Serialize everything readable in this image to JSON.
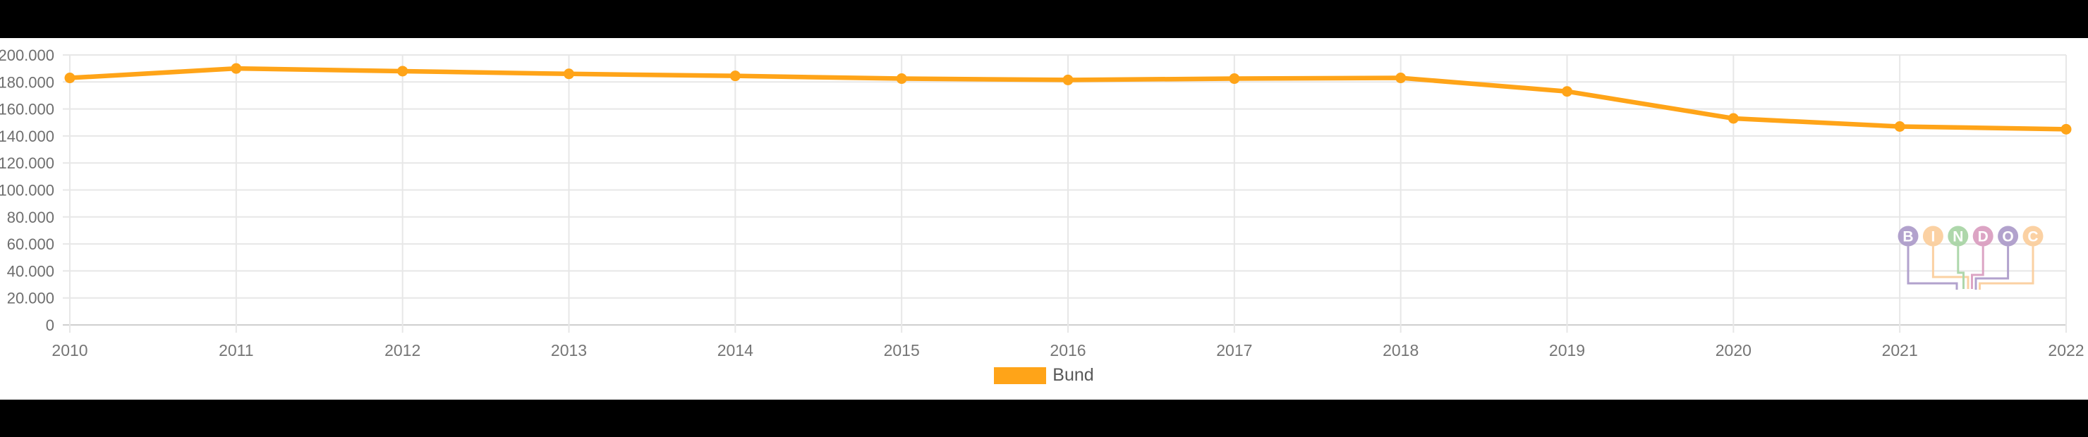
{
  "chart_data": {
    "type": "line",
    "title": "",
    "xlabel": "",
    "ylabel": "",
    "categories": [
      "2010",
      "2011",
      "2012",
      "2013",
      "2014",
      "2015",
      "2016",
      "2017",
      "2018",
      "2019",
      "2020",
      "2021",
      "2022"
    ],
    "series": [
      {
        "name": "Bund",
        "color": "#FFA418",
        "values": [
          183000,
          190000,
          188000,
          186000,
          184500,
          182500,
          181500,
          182500,
          183000,
          173000,
          153000,
          147000,
          145000
        ]
      }
    ],
    "ylim": [
      0,
      200000
    ],
    "y_ticks": [
      200000,
      180000,
      160000,
      140000,
      120000,
      100000,
      80000,
      60000,
      40000,
      20000,
      0
    ],
    "y_tick_labels": [
      "200.000",
      "180.000",
      "160.000",
      "140.000",
      "120.000",
      "100.000",
      "80.000",
      "60.000",
      "40.000",
      "20.000",
      "0"
    ],
    "grid": true,
    "point_markers": true,
    "legend_position": "bottom-center"
  },
  "legend": {
    "label": "Bund",
    "swatch_color": "#FFA418"
  },
  "watermark": {
    "text": "BINDOC",
    "letters": [
      {
        "char": "B",
        "color": "#AC9BC9"
      },
      {
        "char": "I",
        "color": "#FBCE9C"
      },
      {
        "char": "N",
        "color": "#A8D4A4"
      },
      {
        "char": "D",
        "color": "#DA9DBF"
      },
      {
        "char": "O",
        "color": "#AC9BC9"
      },
      {
        "char": "C",
        "color": "#FBCE9C"
      }
    ]
  },
  "colors": {
    "series_orange": "#FFA418",
    "gridline": "#E7E7E7",
    "baseline": "#CFCFCF",
    "axis_label": "#6E6E6E",
    "background_bars": "#000000",
    "card_background": "#FFFFFF"
  }
}
